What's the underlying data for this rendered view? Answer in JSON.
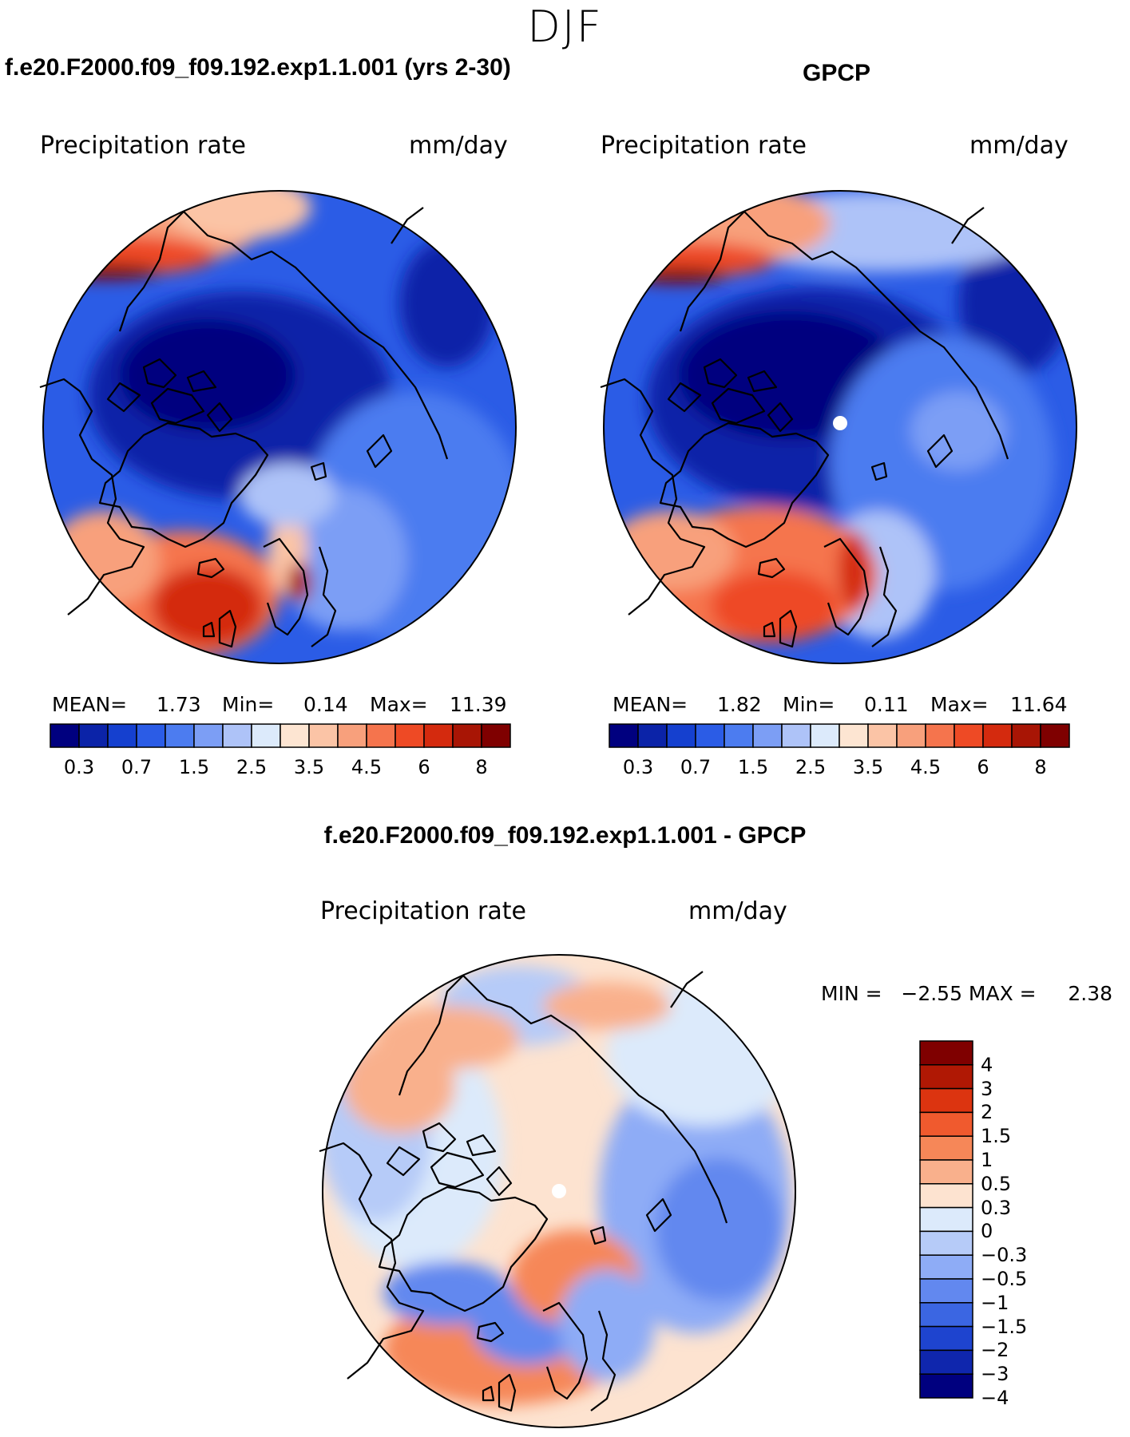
{
  "season": "DJF",
  "panels": [
    {
      "title": "f.e20.F2000.f09_f09.192.exp1.1.001 (yrs 2-30)",
      "variable": "Precipitation rate",
      "units": "mm/day",
      "stats": {
        "mean_label": "MEAN=",
        "mean": "1.73",
        "min_label": "Min=",
        "min": "0.14",
        "max_label": "Max=",
        "max": "11.39"
      }
    },
    {
      "title": "GPCP",
      "variable": "Precipitation rate",
      "units": "mm/day",
      "stats": {
        "mean_label": "MEAN=",
        "mean": "1.82",
        "min_label": "Min=",
        "min": "0.11",
        "max_label": "Max=",
        "max": "11.64"
      }
    }
  ],
  "diff": {
    "title": "f.e20.F2000.f09_f09.192.exp1.1.001 - GPCP",
    "variable": "Precipitation rate",
    "units": "mm/day",
    "minmax": "MIN =   −2.55 MAX =     2.38"
  },
  "colorbar_abs": {
    "colors": [
      "#00007f",
      "#0b23a8",
      "#1540cf",
      "#2b5ce6",
      "#4c7cf0",
      "#7c9ef5",
      "#aec3f8",
      "#dceafb",
      "#fde5d2",
      "#fbc4a6",
      "#f8a07c",
      "#f5744d",
      "#ee4a25",
      "#d42a0e",
      "#a81505",
      "#7f0000"
    ],
    "labels": [
      "0.3",
      "0.7",
      "1.5",
      "2.5",
      "3.5",
      "4.5",
      "6",
      "8"
    ]
  },
  "colorbar_diff": {
    "colors": [
      "#7f0000",
      "#b01804",
      "#dc3410",
      "#f05a2e",
      "#f68758",
      "#f9b08c",
      "#fde3d0",
      "#dceafb",
      "#b6cbf8",
      "#8eacf6",
      "#6288ef",
      "#3b66e2",
      "#1e44cf",
      "#0f26ad",
      "#00007f"
    ],
    "labels": [
      "4",
      "3",
      "2",
      "1.5",
      "1",
      "0.5",
      "0.3",
      "0",
      "−0.3",
      "−0.5",
      "−1",
      "−1.5",
      "−2",
      "−3",
      "−4"
    ]
  }
}
